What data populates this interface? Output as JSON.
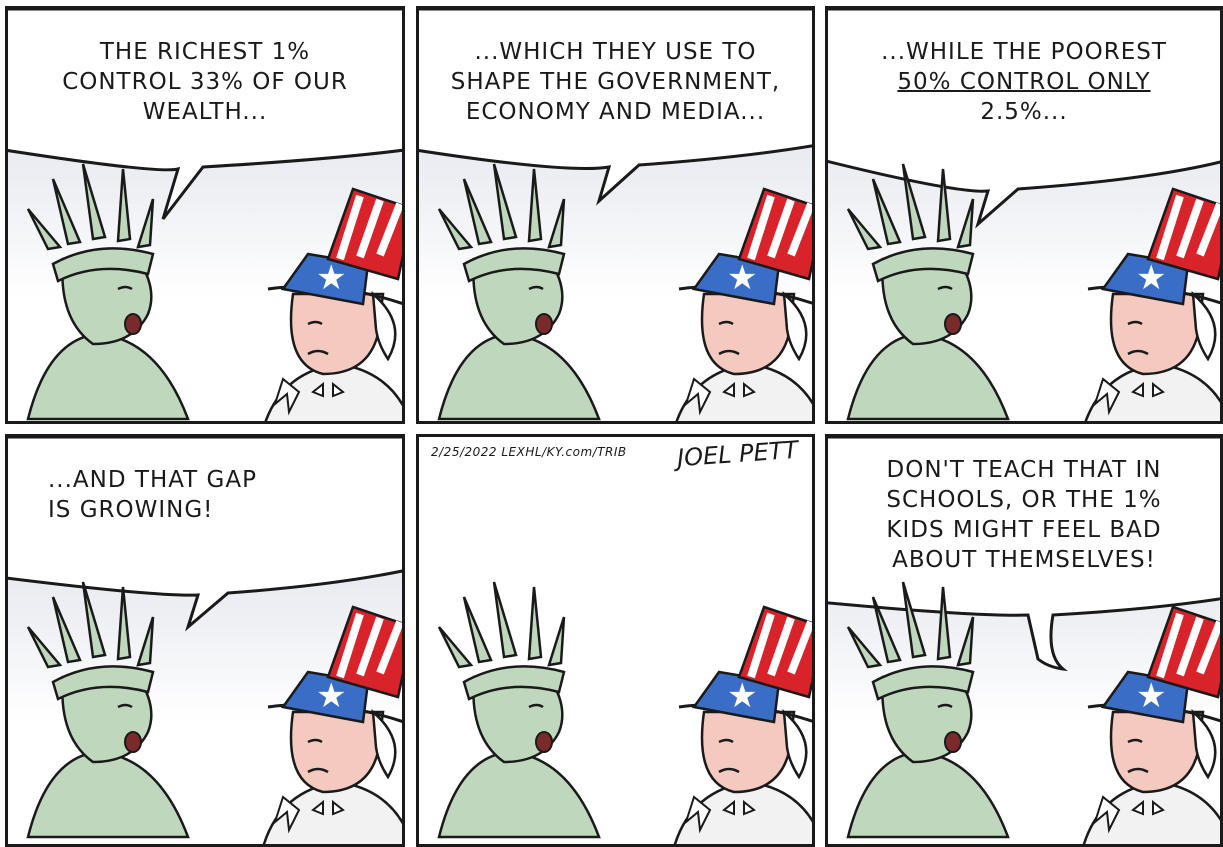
{
  "comic": {
    "panels": [
      {
        "lines": [
          "The richest 1%",
          "control 33% of our",
          "wealth..."
        ]
      },
      {
        "lines": [
          "...which they use to",
          "shape the government,",
          "economy and media..."
        ]
      },
      {
        "lines": [
          "...while the poorest",
          "50% control only",
          "2.5%..."
        ]
      },
      {
        "lines": [
          "...and that gap",
          "is growing!"
        ]
      },
      {
        "signature_date": "2/25/2022 LEXHL/KY.com/TRIB",
        "signature_name": "JOEL PETT"
      },
      {
        "lines": [
          "Don't teach that in",
          "schools, or the 1%",
          "kids might feel bad",
          "about themselves!"
        ]
      }
    ]
  },
  "colors": {
    "liberty_green": "#bfd8bd",
    "uncle_sam_skin": "#f4c9c0",
    "hat_blue": "#3a6ec6",
    "hat_red": "#d8232a",
    "ink": "#1a1a1a"
  }
}
